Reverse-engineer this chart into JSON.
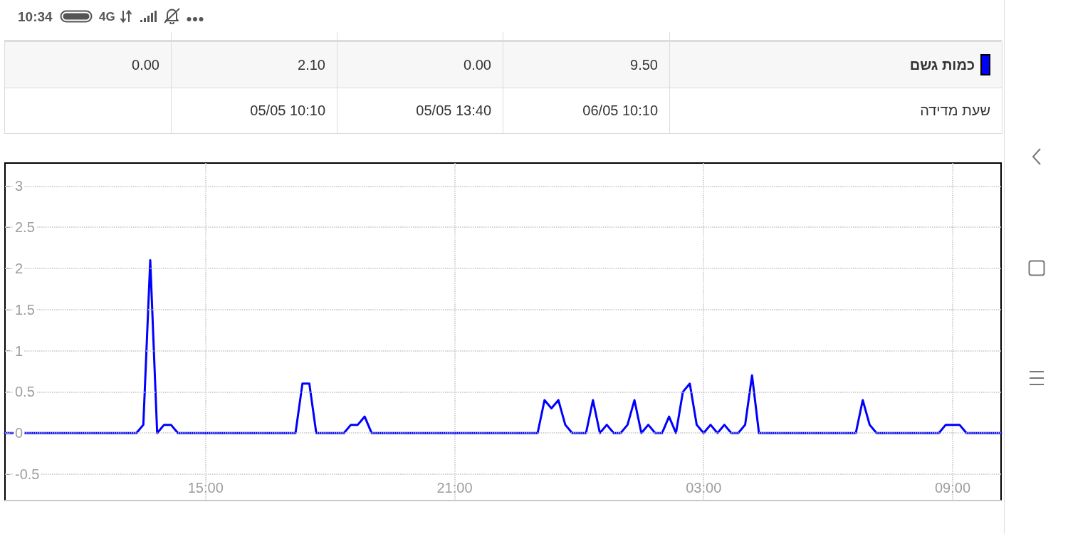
{
  "chart_data": [
    {
      "type": "other",
      "annotations": [
        "10:34",
        "4G"
      ]
    },
    {
      "type": "other",
      "annotations": [
        "כמות גשם",
        "9.50",
        "0.00",
        "2.10",
        "0.00",
        "שעת מדידה",
        "06/05 10:10",
        "05/05 13:40",
        "05/05 10:10"
      ]
    },
    {
      "type": "line",
      "color": "#0000ff",
      "x": [
        "--05-05T10:10",
        "--05-05T13:20",
        "--05-05T13:30",
        "--05-05T13:40",
        "--05-05T13:50",
        "--05-05T14:00",
        "--05-05T14:10",
        "--05-05T14:20",
        "--05-05T17:10",
        "--05-05T17:20",
        "--05-05T17:30",
        "--05-05T17:40",
        "--05-05T18:20",
        "--05-05T18:30",
        "--05-05T18:40",
        "--05-05T18:50",
        "--05-05T19:00",
        "--05-05T23:00",
        "--05-05T23:10",
        "--05-05T23:20",
        "--05-05T23:30",
        "--05-05T23:40",
        "--05-05T23:50",
        "--05-06T00:10",
        "--05-06T00:20",
        "--05-06T00:30",
        "--05-06T00:40",
        "--05-06T00:50",
        "--05-06T01:00",
        "--05-06T01:10",
        "--05-06T01:20",
        "--05-06T01:30",
        "--05-06T01:40",
        "--05-06T01:50",
        "--05-06T02:00",
        "--05-06T02:10",
        "--05-06T02:20",
        "--05-06T02:30",
        "--05-06T02:40",
        "--05-06T02:50",
        "--05-06T03:00",
        "--05-06T03:10",
        "--05-06T03:20",
        "--05-06T03:30",
        "--05-06T03:40",
        "--05-06T03:50",
        "--05-06T04:00",
        "--05-06T04:10",
        "--05-06T04:20",
        "--05-06T06:40",
        "--05-06T06:50",
        "--05-06T07:00",
        "--05-06T07:10",
        "--05-06T08:40",
        "--05-06T08:50",
        "--05-06T09:00",
        "--05-06T09:10",
        "--05-06T09:20",
        "--05-06T10:10"
      ],
      "values": [
        0,
        0,
        0.1,
        2.1,
        0,
        0.1,
        0.1,
        0,
        0,
        0.6,
        0.6,
        0,
        0,
        0.1,
        0.1,
        0.2,
        0,
        0,
        0.4,
        0.3,
        0.4,
        0.1,
        0,
        0,
        0.4,
        0,
        0.1,
        0,
        0,
        0.1,
        0.4,
        0,
        0.1,
        0,
        0,
        0.2,
        0,
        0.5,
        0.6,
        0.1,
        0,
        0.1,
        0,
        0.1,
        0,
        0,
        0.1,
        0.7,
        0,
        0,
        0.4,
        0.1,
        0,
        0,
        0.1,
        0.1,
        0.1,
        0,
        0
      ],
      "xlim": [
        "--05-05T10:10",
        "--05-06T10:10"
      ],
      "ylim": [
        -0.82,
        3.28
      ],
      "xticks": [
        {
          "value": "--05-05T15:00",
          "label": "15:00"
        },
        {
          "value": "--05-05T21:00",
          "label": "21:00"
        },
        {
          "value": "--05-06T03:00",
          "label": "03:00"
        },
        {
          "value": "--05-06T09:00",
          "label": "09:00"
        }
      ],
      "yticks": [
        -0.5,
        0,
        0.5,
        1,
        1.5,
        2,
        2.5,
        3
      ],
      "grid": true
    }
  ]
}
